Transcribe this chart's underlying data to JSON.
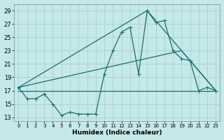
{
  "title": "",
  "xlabel": "Humidex (Indice chaleur)",
  "ylabel": "",
  "bg_color": "#c5e8e8",
  "grid_color": "#aed4d4",
  "line_color": "#1a6e6e",
  "xlim": [
    -0.5,
    23.5
  ],
  "ylim": [
    12.5,
    30.0
  ],
  "yticks": [
    13,
    15,
    17,
    19,
    21,
    23,
    25,
    27,
    29
  ],
  "xticks": [
    0,
    1,
    2,
    3,
    4,
    5,
    6,
    7,
    8,
    9,
    10,
    11,
    12,
    13,
    14,
    15,
    16,
    17,
    18,
    19,
    20,
    21,
    22,
    23
  ],
  "series_main": {
    "x": [
      0,
      1,
      2,
      3,
      4,
      5,
      6,
      7,
      8,
      9,
      10,
      11,
      12,
      13,
      14,
      15,
      16,
      17,
      18,
      19,
      20,
      21,
      22,
      23
    ],
    "y": [
      17.5,
      15.8,
      15.8,
      16.5,
      15.0,
      13.3,
      13.8,
      13.5,
      13.5,
      13.5,
      19.5,
      23.0,
      25.8,
      26.5,
      19.5,
      29.0,
      27.2,
      27.5,
      23.0,
      21.8,
      21.5,
      17.0,
      17.5,
      17.0
    ]
  },
  "series_tri1": {
    "x": [
      0,
      15,
      23
    ],
    "y": [
      17.5,
      29.0,
      17.0
    ]
  },
  "series_tri2": {
    "x": [
      0,
      19,
      23
    ],
    "y": [
      17.5,
      23.0,
      17.0
    ]
  },
  "series_flat": {
    "x": [
      0,
      23
    ],
    "y": [
      17.0,
      17.0
    ]
  }
}
